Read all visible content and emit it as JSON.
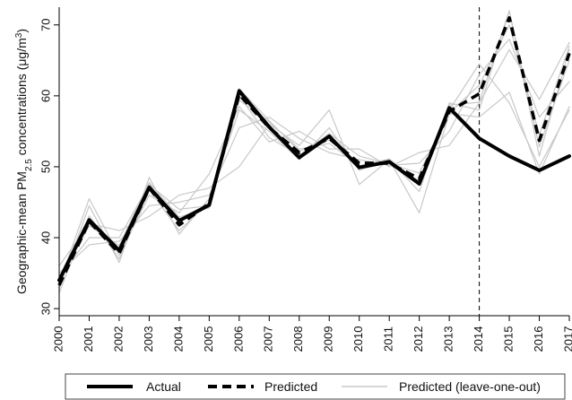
{
  "chart_data": {
    "type": "line",
    "ylabel": {
      "prefix": "Geographic-mean PM",
      "subscript": "2.5",
      "suffix": " concentrations (μg/m",
      "superscript": "3",
      "close": ")"
    },
    "xlabel": "",
    "x": [
      2000,
      2001,
      2002,
      2003,
      2004,
      2005,
      2006,
      2007,
      2008,
      2009,
      2010,
      2011,
      2012,
      2013,
      2014,
      2015,
      2016,
      2017
    ],
    "x_tick_labels": [
      "2000",
      "2001",
      "2002",
      "2003",
      "2004",
      "2005",
      "2006",
      "2007",
      "2008",
      "2009",
      "2010",
      "2011",
      "2012",
      "2013",
      "2014",
      "2015",
      "2016",
      "2017"
    ],
    "y_ticks": [
      30,
      40,
      50,
      60,
      70
    ],
    "y_tick_labels": [
      "30",
      "40",
      "50",
      "60",
      "70"
    ],
    "xlim": [
      2000,
      2017
    ],
    "ylim": [
      29,
      72.5
    ],
    "vline_x": 2014,
    "grid": false,
    "legend_position": "bottom",
    "series": [
      {
        "name": "Actual",
        "style": "solid-thick",
        "color": "#000000",
        "values": [
          34,
          42.5,
          38.2,
          47.1,
          42.4,
          44.6,
          60.7,
          55.6,
          51.3,
          54.3,
          49.9,
          50.7,
          47.6,
          58.3,
          54.0,
          51.5,
          49.5,
          51.5
        ]
      },
      {
        "name": "Predicted",
        "style": "dashed-thick",
        "color": "#000000",
        "values": [
          33.3,
          42.3,
          37.8,
          47.0,
          41.8,
          44.8,
          60.2,
          55.5,
          52.0,
          54.0,
          50.5,
          50.5,
          48.3,
          57.8,
          60.3,
          71.0,
          53.7,
          66.0
        ]
      },
      {
        "name": "Predicted (leave-one-out)",
        "style": "thin",
        "color": "#c8c8c8",
        "members": [
          [
            32.2,
            43.1,
            37.0,
            46.8,
            41.0,
            45.0,
            60.0,
            54.1,
            51.6,
            54.7,
            51.5,
            50.4,
            49.1,
            57.6,
            61.5,
            70.0,
            54.5,
            67.0
          ],
          [
            33.8,
            41.7,
            38.9,
            47.8,
            42.9,
            44.2,
            59.4,
            56.3,
            52.5,
            53.3,
            50.1,
            51.1,
            47.5,
            58.7,
            59.1,
            72.0,
            52.8,
            65.0
          ],
          [
            35.0,
            39.0,
            39.5,
            44.5,
            45.0,
            46.0,
            55.5,
            57.0,
            54.0,
            52.0,
            51.0,
            50.2,
            50.5,
            55.0,
            63.0,
            68.0,
            57.0,
            62.0
          ],
          [
            32.8,
            44.5,
            36.5,
            48.5,
            40.5,
            45.5,
            58.0,
            55.0,
            51.0,
            55.5,
            49.5,
            51.0,
            46.5,
            59.0,
            58.0,
            72.0,
            51.5,
            66.5
          ],
          [
            36.0,
            42.0,
            41.0,
            43.0,
            46.0,
            47.0,
            50.0,
            56.0,
            53.0,
            58.0,
            47.5,
            51.0,
            43.5,
            57.5,
            57.0,
            60.5,
            49.0,
            58.5
          ],
          [
            33.5,
            45.5,
            37.5,
            46.0,
            43.5,
            49.0,
            58.5,
            53.5,
            55.0,
            52.5,
            52.5,
            50.0,
            52.0,
            53.0,
            59.0,
            66.5,
            59.5,
            67.5
          ],
          [
            34.5,
            40.0,
            40.0,
            47.5,
            44.0,
            44.5,
            61.0,
            56.5,
            52.2,
            53.8,
            50.2,
            50.6,
            48.0,
            58.0,
            64.5,
            59.0,
            50.0,
            58.0
          ]
        ]
      }
    ]
  }
}
